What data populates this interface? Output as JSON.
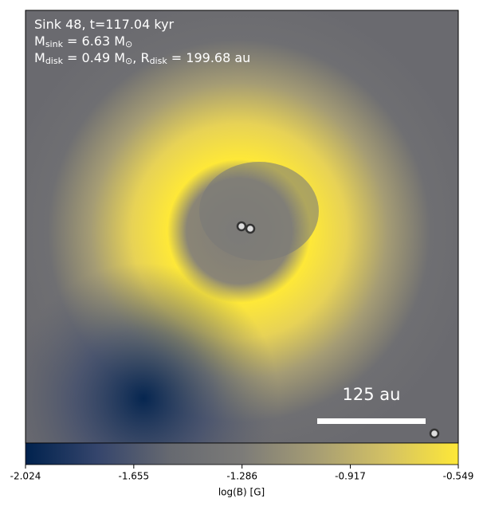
{
  "chart_data": {
    "type": "image",
    "annotations": [
      [
        {
          "text": "Sink 48, t=117.04 kyr"
        }
      ],
      [
        {
          "text": "M"
        },
        {
          "text": "sink",
          "sub": true
        },
        {
          "text": " = 6.63 M"
        },
        {
          "text": "⊙",
          "sub": true
        }
      ],
      [
        {
          "text": "M"
        },
        {
          "text": "disk",
          "sub": true
        },
        {
          "text": " = 0.49 M"
        },
        {
          "text": "⊙",
          "sub": true
        },
        {
          "text": ", R"
        },
        {
          "text": "disk",
          "sub": true
        },
        {
          "text": " = 199.68 au"
        }
      ]
    ],
    "scale_bar": "125 au",
    "colorbar": {
      "label": "log(B) [G]",
      "clim": [
        -2.024,
        -0.549
      ],
      "ticks": [
        -2.024,
        -1.655,
        -1.286,
        -0.917,
        -0.549
      ],
      "colormap": [
        "#00224e",
        "#35456c",
        "#666970",
        "#7c7b78",
        "#a59c74",
        "#d3c164",
        "#fee838"
      ]
    }
  }
}
